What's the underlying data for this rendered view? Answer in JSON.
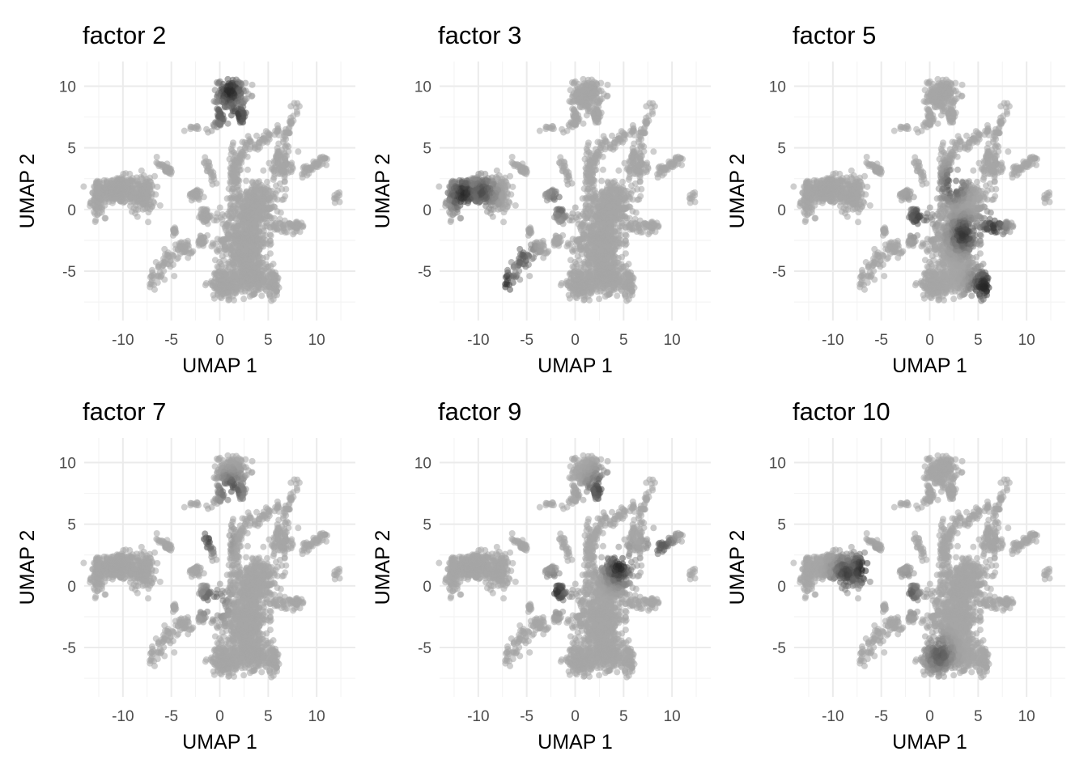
{
  "figure": {
    "background": "#ffffff",
    "grid_major_color": "#ebebeb",
    "grid_minor_color": "#f2f2f2",
    "point_base_color": "#a6a6a6",
    "point_high_color": "#262626"
  },
  "chart_data": [
    {
      "type": "scatter",
      "title": "factor  2",
      "xlabel": "UMAP 1",
      "ylabel": "UMAP 2",
      "xlim": [
        -14,
        14
      ],
      "ylim": [
        -9,
        12
      ],
      "xticks": [
        -10,
        -5,
        0,
        5,
        10
      ],
      "xtick_labels": [
        "-10",
        "-5",
        "0",
        "5",
        "10"
      ],
      "yticks": [
        -5,
        0,
        5,
        10
      ],
      "ytick_labels": [
        "-5",
        "0",
        "5",
        "10"
      ],
      "grid": true,
      "highlight_regions": [
        {
          "region": "top cluster",
          "x": 1.0,
          "y": 9.6,
          "intensity": 1.0
        },
        {
          "region": "top cluster tail",
          "x": 1.8,
          "y": 7.6,
          "intensity": 0.8
        },
        {
          "region": "top cluster stub",
          "x": 0.2,
          "y": 7.8,
          "intensity": 0.6
        }
      ]
    },
    {
      "type": "scatter",
      "title": "factor  3",
      "xlabel": "UMAP 1",
      "ylabel": "UMAP 2",
      "xlim": [
        -14,
        14
      ],
      "ylim": [
        -9,
        12
      ],
      "xticks": [
        -10,
        -5,
        0,
        5,
        10
      ],
      "xtick_labels": [
        "-10",
        "-5",
        "0",
        "5",
        "10"
      ],
      "yticks": [
        -5,
        0,
        5,
        10
      ],
      "ytick_labels": [
        "-5",
        "0",
        "5",
        "10"
      ],
      "grid": true,
      "highlight_regions": [
        {
          "region": "left cluster",
          "x": -11.6,
          "y": 1.2,
          "intensity": 1.0
        },
        {
          "region": "left cluster center",
          "x": -9.6,
          "y": 1.4,
          "intensity": 0.7
        },
        {
          "region": "lower-left arm",
          "x": -7.2,
          "y": -6.0,
          "intensity": 0.9
        },
        {
          "region": "lower-left arm mid",
          "x": -5.5,
          "y": -3.8,
          "intensity": 0.6
        },
        {
          "region": "center-left streak",
          "x": -1.5,
          "y": 0.6,
          "intensity": 0.6
        }
      ]
    },
    {
      "type": "scatter",
      "title": "factor  5",
      "xlabel": "UMAP 1",
      "ylabel": "UMAP 2",
      "xlim": [
        -14,
        14
      ],
      "ylim": [
        -9,
        12
      ],
      "xticks": [
        -10,
        -5,
        0,
        5,
        10
      ],
      "xtick_labels": [
        "-10",
        "-5",
        "0",
        "5",
        "10"
      ],
      "yticks": [
        -5,
        0,
        5,
        10
      ],
      "ytick_labels": [
        "-5",
        "0",
        "5",
        "10"
      ],
      "grid": true,
      "highlight_regions": [
        {
          "region": "central body",
          "x": 3.5,
          "y": -2.0,
          "intensity": 0.9
        },
        {
          "region": "right arm",
          "x": 6.5,
          "y": -1.5,
          "intensity": 0.85
        },
        {
          "region": "lower-right tail",
          "x": 5.6,
          "y": -6.2,
          "intensity": 1.0
        },
        {
          "region": "upper stem",
          "x": 2.4,
          "y": 2.0,
          "intensity": 0.7
        },
        {
          "region": "center-left blob",
          "x": -1.2,
          "y": -0.6,
          "intensity": 0.75
        }
      ]
    },
    {
      "type": "scatter",
      "title": "factor  7",
      "xlabel": "UMAP 1",
      "ylabel": "UMAP 2",
      "xlim": [
        -14,
        14
      ],
      "ylim": [
        -9,
        12
      ],
      "xticks": [
        -10,
        -5,
        0,
        5,
        10
      ],
      "xtick_labels": [
        "-10",
        "-5",
        "0",
        "5",
        "10"
      ],
      "yticks": [
        -5,
        0,
        5,
        10
      ],
      "ytick_labels": [
        "-5",
        "0",
        "5",
        "10"
      ],
      "grid": true,
      "highlight_regions": [
        {
          "region": "upper-middle streak",
          "x": -0.6,
          "y": 4.2,
          "intensity": 1.0
        },
        {
          "region": "top cluster base",
          "x": 1.2,
          "y": 7.8,
          "intensity": 0.7
        },
        {
          "region": "small center point",
          "x": -0.8,
          "y": -1.2,
          "intensity": 0.6
        }
      ]
    },
    {
      "type": "scatter",
      "title": "factor  9",
      "xlabel": "UMAP 1",
      "ylabel": "UMAP 2",
      "xlim": [
        -14,
        14
      ],
      "ylim": [
        -9,
        12
      ],
      "xticks": [
        -10,
        -5,
        0,
        5,
        10
      ],
      "xtick_labels": [
        "-10",
        "-5",
        "0",
        "5",
        "10"
      ],
      "yticks": [
        -5,
        0,
        5,
        10
      ],
      "ytick_labels": [
        "-5",
        "0",
        "5",
        "10"
      ],
      "grid": true,
      "highlight_regions": [
        {
          "region": "upper stem right",
          "x": 4.5,
          "y": 1.5,
          "intensity": 1.0
        },
        {
          "region": "center-left blob",
          "x": -2.0,
          "y": -0.4,
          "intensity": 0.9
        },
        {
          "region": "top cluster base",
          "x": 2.5,
          "y": 7.8,
          "intensity": 0.7
        },
        {
          "region": "right streak",
          "x": 9.0,
          "y": 3.2,
          "intensity": 0.6
        }
      ]
    },
    {
      "type": "scatter",
      "title": "factor  10",
      "xlabel": "UMAP 1",
      "ylabel": "UMAP 2",
      "xlim": [
        -14,
        14
      ],
      "ylim": [
        -9,
        12
      ],
      "xticks": [
        -10,
        -5,
        0,
        5,
        10
      ],
      "xtick_labels": [
        "-10",
        "-5",
        "0",
        "5",
        "10"
      ],
      "yticks": [
        -5,
        0,
        5,
        10
      ],
      "ytick_labels": [
        "-5",
        "0",
        "5",
        "10"
      ],
      "grid": true,
      "highlight_regions": [
        {
          "region": "left cluster right half",
          "x": -7.0,
          "y": 1.4,
          "intensity": 1.0
        },
        {
          "region": "left cluster mid",
          "x": -8.6,
          "y": 1.0,
          "intensity": 0.8
        },
        {
          "region": "center-left blob",
          "x": -2.2,
          "y": -0.6,
          "intensity": 0.6
        },
        {
          "region": "small central point",
          "x": 1.0,
          "y": -5.6,
          "intensity": 0.6
        }
      ]
    }
  ]
}
